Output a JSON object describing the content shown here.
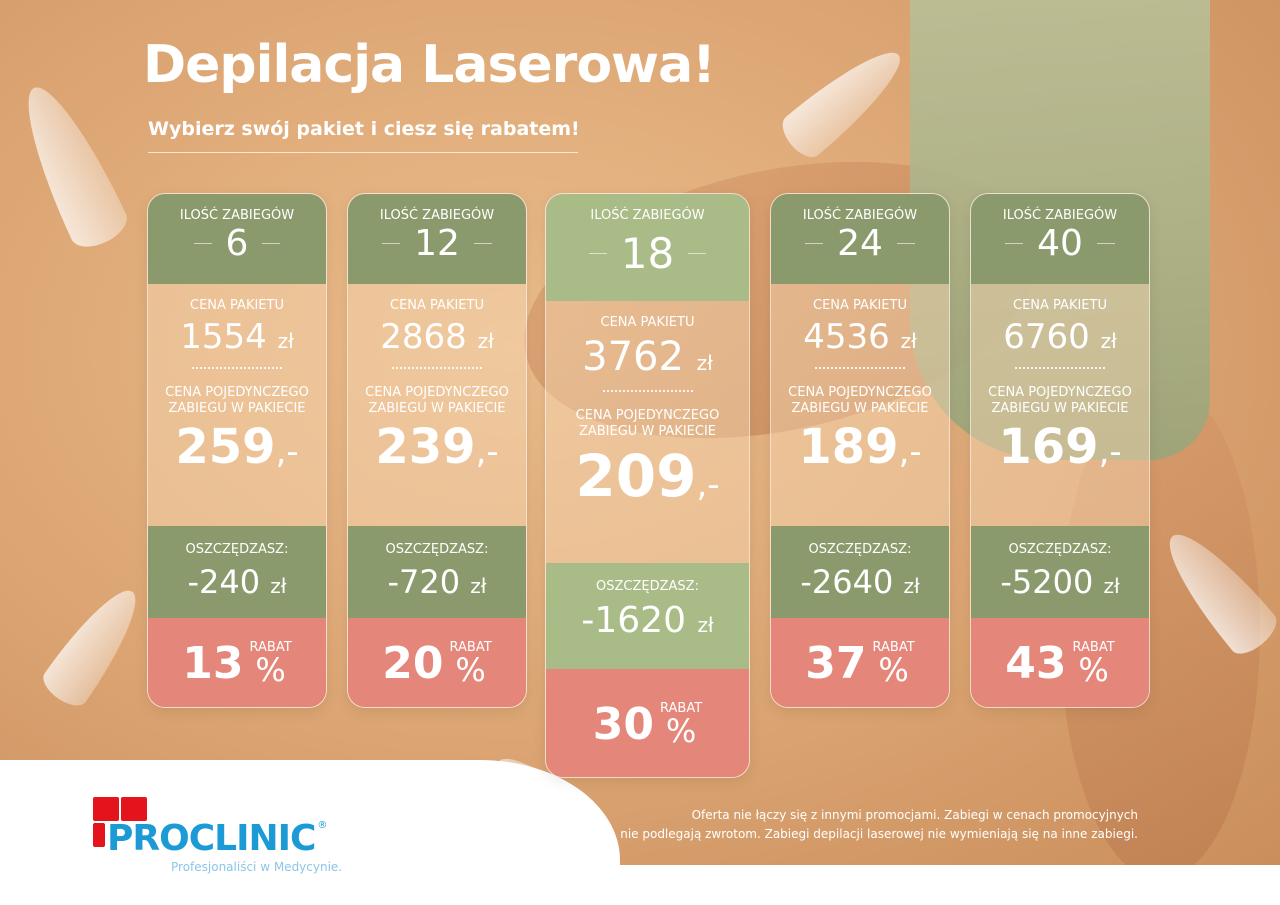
{
  "title": "Depilacja Laserowa!",
  "subtitle": "Wybierz swój pakiet i ciesz się rabatem!",
  "labels": {
    "count": "ILOŚĆ ZABIEGÓW",
    "package_price": "CENA PAKIETU",
    "single_price": "CENA POJEDYNCZEGO ZABIEGU W PAKIECIE",
    "savings": "OSZCZĘDZASZ:",
    "discount": "RABAT",
    "currency": "zł",
    "percent": "%",
    "single_suffix": ",-"
  },
  "packages": [
    {
      "count": "6",
      "package_price": "1554",
      "single_price": "259",
      "savings": "-240",
      "discount": "13"
    },
    {
      "count": "12",
      "package_price": "2868",
      "single_price": "239",
      "savings": "-720",
      "discount": "20"
    },
    {
      "count": "18",
      "package_price": "3762",
      "single_price": "209",
      "savings": "-1620",
      "discount": "30",
      "featured": true
    },
    {
      "count": "24",
      "package_price": "4536",
      "single_price": "189",
      "savings": "-2640",
      "discount": "37"
    },
    {
      "count": "40",
      "package_price": "6760",
      "single_price": "169",
      "savings": "-5200",
      "discount": "43"
    }
  ],
  "logo": {
    "brand": "PROCLINIC",
    "registered": "®",
    "tagline": "Profesjonaliści w Medycynie."
  },
  "disclaimer": [
    "Oferta nie łączy się z innymi promocjami. Zabiegi w cenach promocyjnych",
    "nie podlegają zwrotom. Zabiegi depilacji laserowej nie wymieniają się na inne zabiegi."
  ],
  "colors": {
    "green": "#8b9a6c",
    "light_green": "#a9bb86",
    "red": "#e4867a",
    "brand_blue": "#1b9ad6",
    "brand_red": "#e3141c"
  }
}
